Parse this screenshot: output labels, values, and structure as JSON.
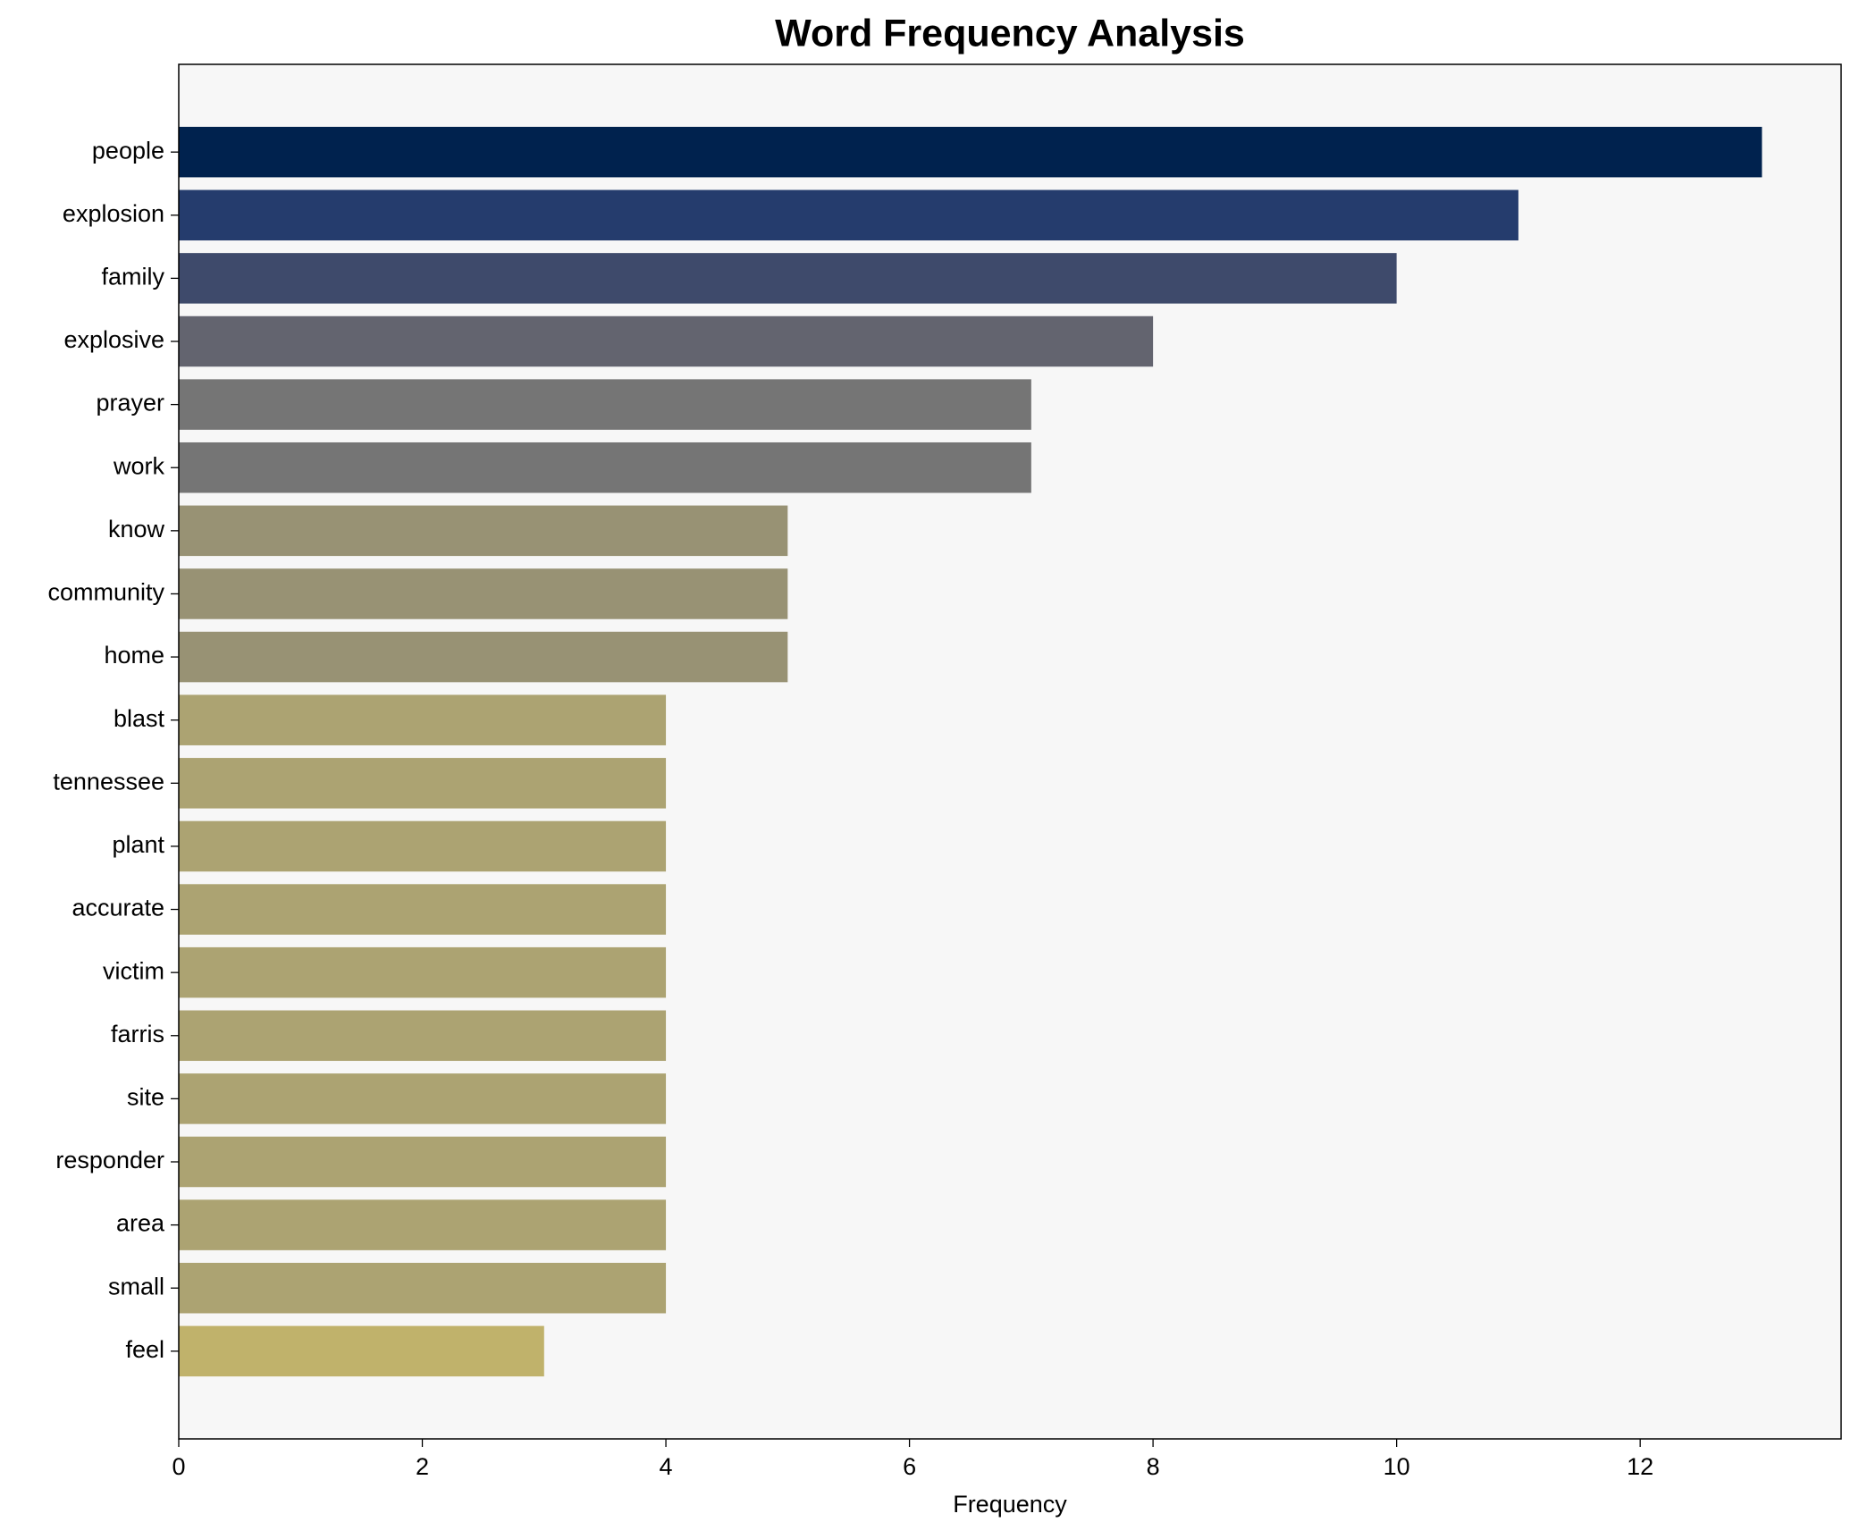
{
  "chart_data": {
    "type": "barh",
    "title": "Word Frequency Analysis",
    "x_label": "Frequency",
    "categories": [
      "people",
      "explosion",
      "family",
      "explosive",
      "prayer",
      "work",
      "know",
      "community",
      "home",
      "blast",
      "tennessee",
      "plant",
      "accurate",
      "victim",
      "farris",
      "site",
      "responder",
      "area",
      "small",
      "feel"
    ],
    "values": [
      13,
      11,
      10,
      8,
      7,
      7,
      5,
      5,
      5,
      4,
      4,
      4,
      4,
      4,
      4,
      4,
      4,
      4,
      4,
      3
    ],
    "colors": [
      "#00224e",
      "#253c6d",
      "#3e4a6b",
      "#63646f",
      "#757575",
      "#757575",
      "#989274",
      "#989274",
      "#989274",
      "#aca372",
      "#aca372",
      "#aca372",
      "#aca372",
      "#aca372",
      "#aca372",
      "#aca372",
      "#aca372",
      "#aca372",
      "#aca372",
      "#c0b26b"
    ],
    "xlim": [
      0,
      13.65
    ],
    "xticks": [
      0,
      2,
      4,
      6,
      8,
      10,
      12
    ],
    "grid": false
  }
}
